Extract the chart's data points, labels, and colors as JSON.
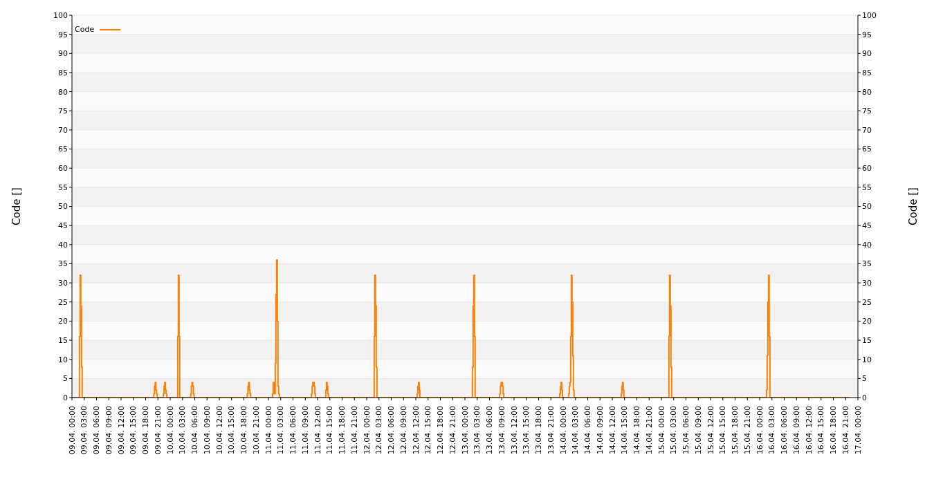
{
  "chart_data": {
    "type": "step",
    "ylabel": "Code []",
    "y2label": "Code []",
    "xlim": [
      "--04-09T00:00",
      "--04-17T00:00"
    ],
    "xticks": [
      {
        "value": "--04-09T00:00",
        "label": "09.04. 00:00"
      },
      {
        "value": "--04-09T03:00",
        "label": "09.04. 03:00"
      },
      {
        "value": "--04-09T06:00",
        "label": "09.04. 06:00"
      },
      {
        "value": "--04-09T09:00",
        "label": "09.04. 09:00"
      },
      {
        "value": "--04-09T12:00",
        "label": "09.04. 12:00"
      },
      {
        "value": "--04-09T15:00",
        "label": "09.04. 15:00"
      },
      {
        "value": "--04-09T18:00",
        "label": "09.04. 18:00"
      },
      {
        "value": "--04-09T21:00",
        "label": "09.04. 21:00"
      },
      {
        "value": "--04-10T00:00",
        "label": "10.04. 00:00"
      },
      {
        "value": "--04-10T03:00",
        "label": "10.04. 03:00"
      },
      {
        "value": "--04-10T06:00",
        "label": "10.04. 06:00"
      },
      {
        "value": "--04-10T09:00",
        "label": "10.04. 09:00"
      },
      {
        "value": "--04-10T12:00",
        "label": "10.04. 12:00"
      },
      {
        "value": "--04-10T15:00",
        "label": "10.04. 15:00"
      },
      {
        "value": "--04-10T18:00",
        "label": "10.04. 18:00"
      },
      {
        "value": "--04-10T21:00",
        "label": "10.04. 21:00"
      },
      {
        "value": "--04-11T00:00",
        "label": "11.04. 00:00"
      },
      {
        "value": "--04-11T03:00",
        "label": "11.04. 03:00"
      },
      {
        "value": "--04-11T06:00",
        "label": "11.04. 06:00"
      },
      {
        "value": "--04-11T09:00",
        "label": "11.04. 09:00"
      },
      {
        "value": "--04-11T12:00",
        "label": "11.04. 12:00"
      },
      {
        "value": "--04-11T15:00",
        "label": "11.04. 15:00"
      },
      {
        "value": "--04-11T18:00",
        "label": "11.04. 18:00"
      },
      {
        "value": "--04-11T21:00",
        "label": "11.04. 21:00"
      },
      {
        "value": "--04-12T00:00",
        "label": "12.04. 00:00"
      },
      {
        "value": "--04-12T03:00",
        "label": "12.04. 03:00"
      },
      {
        "value": "--04-12T06:00",
        "label": "12.04. 06:00"
      },
      {
        "value": "--04-12T09:00",
        "label": "12.04. 09:00"
      },
      {
        "value": "--04-12T12:00",
        "label": "12.04. 12:00"
      },
      {
        "value": "--04-12T15:00",
        "label": "12.04. 15:00"
      },
      {
        "value": "--04-12T18:00",
        "label": "12.04. 18:00"
      },
      {
        "value": "--04-12T21:00",
        "label": "12.04. 21:00"
      },
      {
        "value": "--04-13T00:00",
        "label": "13.04. 00:00"
      },
      {
        "value": "--04-13T03:00",
        "label": "13.04. 03:00"
      },
      {
        "value": "--04-13T06:00",
        "label": "13.04. 06:00"
      },
      {
        "value": "--04-13T09:00",
        "label": "13.04. 09:00"
      },
      {
        "value": "--04-13T12:00",
        "label": "13.04. 12:00"
      },
      {
        "value": "--04-13T15:00",
        "label": "13.04. 15:00"
      },
      {
        "value": "--04-13T18:00",
        "label": "13.04. 18:00"
      },
      {
        "value": "--04-13T21:00",
        "label": "13.04. 21:00"
      },
      {
        "value": "--04-14T00:00",
        "label": "14.04. 00:00"
      },
      {
        "value": "--04-14T03:00",
        "label": "14.04. 03:00"
      },
      {
        "value": "--04-14T06:00",
        "label": "14.04. 06:00"
      },
      {
        "value": "--04-14T09:00",
        "label": "14.04. 09:00"
      },
      {
        "value": "--04-14T12:00",
        "label": "14.04. 12:00"
      },
      {
        "value": "--04-14T15:00",
        "label": "14.04. 15:00"
      },
      {
        "value": "--04-14T18:00",
        "label": "14.04. 18:00"
      },
      {
        "value": "--04-14T21:00",
        "label": "14.04. 21:00"
      },
      {
        "value": "--04-15T00:00",
        "label": "15.04. 00:00"
      },
      {
        "value": "--04-15T03:00",
        "label": "15.04. 03:00"
      },
      {
        "value": "--04-15T06:00",
        "label": "15.04. 06:00"
      },
      {
        "value": "--04-15T09:00",
        "label": "15.04. 09:00"
      },
      {
        "value": "--04-15T12:00",
        "label": "15.04. 12:00"
      },
      {
        "value": "--04-15T15:00",
        "label": "15.04. 15:00"
      },
      {
        "value": "--04-15T18:00",
        "label": "15.04. 18:00"
      },
      {
        "value": "--04-15T21:00",
        "label": "15.04. 21:00"
      },
      {
        "value": "--04-16T00:00",
        "label": "16.04. 00:00"
      },
      {
        "value": "--04-16T03:00",
        "label": "16.04. 03:00"
      },
      {
        "value": "--04-16T06:00",
        "label": "16.04. 06:00"
      },
      {
        "value": "--04-16T09:00",
        "label": "16.04. 09:00"
      },
      {
        "value": "--04-16T12:00",
        "label": "16.04. 12:00"
      },
      {
        "value": "--04-16T15:00",
        "label": "16.04. 15:00"
      },
      {
        "value": "--04-16T18:00",
        "label": "16.04. 18:00"
      },
      {
        "value": "--04-16T21:00",
        "label": "16.04. 21:00"
      },
      {
        "value": "--04-17T00:00",
        "label": "17.04. 00:00"
      }
    ],
    "ylim": [
      0,
      100
    ],
    "yticks": [
      0,
      5,
      10,
      15,
      20,
      25,
      30,
      35,
      40,
      45,
      50,
      55,
      60,
      65,
      70,
      75,
      80,
      85,
      90,
      95,
      100
    ],
    "y2lim": [
      0,
      100
    ],
    "y2ticks": [
      0,
      5,
      10,
      15,
      20,
      25,
      30,
      35,
      40,
      45,
      50,
      55,
      60,
      65,
      70,
      75,
      80,
      85,
      90,
      95,
      100
    ],
    "grid": "y",
    "legend": "top left",
    "series": [
      {
        "name": "Code",
        "color": "#ff8000",
        "x": [
          "--04-09T00:00",
          "--04-09T01:50",
          "--04-09T02:00",
          "--04-09T02:10",
          "--04-09T02:20",
          "--04-09T02:30",
          "--04-09T20:00",
          "--04-09T20:10",
          "--04-09T20:20",
          "--04-09T20:30",
          "--04-09T20:40",
          "--04-09T20:50",
          "--04-09T22:20",
          "--04-09T22:30",
          "--04-09T22:40",
          "--04-09T22:50",
          "--04-09T23:00",
          "--04-09T23:10",
          "--04-10T01:50",
          "--04-10T02:00",
          "--04-10T02:10",
          "--04-10T02:20",
          "--04-10T05:00",
          "--04-10T05:10",
          "--04-10T05:20",
          "--04-10T05:30",
          "--04-10T05:40",
          "--04-10T05:50",
          "--04-10T18:50",
          "--04-10T19:00",
          "--04-10T19:10",
          "--04-10T19:20",
          "--04-10T19:30",
          "--04-10T19:40",
          "--04-11T01:00",
          "--04-11T01:10",
          "--04-11T01:20",
          "--04-11T01:30",
          "--04-11T01:40",
          "--04-11T01:50",
          "--04-11T02:00",
          "--04-11T02:10",
          "--04-11T02:20",
          "--04-11T02:30",
          "--04-11T02:40",
          "--04-11T10:30",
          "--04-11T10:40",
          "--04-11T10:50",
          "--04-11T11:00",
          "--04-11T11:10",
          "--04-11T11:20",
          "--04-11T11:30",
          "--04-11T14:00",
          "--04-11T14:10",
          "--04-11T14:20",
          "--04-11T14:30",
          "--04-11T14:40",
          "--04-12T01:50",
          "--04-12T02:00",
          "--04-12T02:10",
          "--04-12T02:20",
          "--04-12T02:30",
          "--04-12T12:20",
          "--04-12T12:30",
          "--04-12T12:40",
          "--04-12T12:50",
          "--04-12T13:00",
          "--04-13T01:50",
          "--04-13T02:00",
          "--04-13T02:10",
          "--04-13T02:20",
          "--04-13T02:30",
          "--04-13T08:30",
          "--04-13T08:40",
          "--04-13T08:50",
          "--04-13T09:00",
          "--04-13T09:10",
          "--04-13T09:20",
          "--04-13T09:30",
          "--04-13T23:10",
          "--04-13T23:20",
          "--04-13T23:30",
          "--04-13T23:40",
          "--04-13T23:50",
          "--04-14T01:20",
          "--04-14T01:30",
          "--04-14T01:40",
          "--04-14T01:50",
          "--04-14T02:00",
          "--04-14T02:10",
          "--04-14T02:20",
          "--04-14T02:30",
          "--04-14T02:40",
          "--04-14T14:10",
          "--04-14T14:20",
          "--04-14T14:30",
          "--04-14T14:40",
          "--04-14T14:50",
          "--04-15T01:50",
          "--04-15T02:00",
          "--04-15T02:10",
          "--04-15T02:20",
          "--04-15T02:30",
          "--04-16T01:40",
          "--04-16T01:50",
          "--04-16T02:00",
          "--04-16T02:10",
          "--04-16T02:20",
          "--04-16T02:30",
          "--04-16T22:00"
        ],
        "values": [
          0,
          16,
          32,
          24,
          8,
          0,
          1,
          3,
          4,
          2,
          1,
          0,
          1,
          3,
          4,
          2,
          1,
          0,
          16,
          32,
          16,
          0,
          1,
          3,
          4,
          3,
          1,
          0,
          1,
          3,
          4,
          2,
          1,
          0,
          1,
          4,
          3,
          1,
          9,
          27,
          36,
          20,
          3,
          1,
          0,
          1,
          3,
          4,
          4,
          3,
          1,
          0,
          2,
          4,
          3,
          1,
          0,
          16,
          32,
          24,
          8,
          0,
          1,
          3,
          4,
          2,
          0,
          8,
          24,
          32,
          16,
          0,
          1,
          3,
          4,
          4,
          3,
          1,
          0,
          1,
          3,
          4,
          2,
          0,
          1,
          3,
          4,
          16,
          32,
          25,
          11,
          2,
          0,
          1,
          3,
          4,
          2,
          0,
          16,
          32,
          24,
          8,
          0,
          2,
          11,
          25,
          32,
          16,
          0,
          0
        ]
      }
    ]
  }
}
